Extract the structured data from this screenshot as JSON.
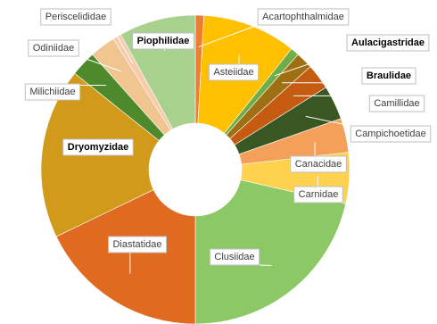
{
  "chart_data": {
    "type": "pie",
    "style": "doughnut",
    "title": "",
    "labels_bold": [
      "Piophilidae",
      "Aulacigastridae",
      "Braulidae",
      "Dryomyzidae"
    ],
    "series": [
      {
        "categories": [
          "Acartophthalmidae",
          "Asteiidae",
          "Aulacigastridae",
          "Braulidae",
          "Camillidae",
          "Campichoetidae",
          "Canacidae",
          "Carnidae",
          "Clusiidae",
          "Diastatidae",
          "Dryomyzidae",
          "Milichiidae",
          "Odiniidae",
          "Periscelididae",
          "Piophilidae"
        ],
        "values": [
          1,
          11,
          1,
          2,
          3,
          4,
          4,
          6,
          24,
          20,
          20,
          3,
          3,
          1,
          9
        ],
        "colors": [
          "#ed7d31",
          "#ffc000",
          "#70ad47",
          "#9e6f13",
          "#c55a11",
          "#385723",
          "#f4a05a",
          "#ffd24d",
          "#8cc966",
          "#e06a1f",
          "#d19a1a",
          "#4e8a2c",
          "#f1c58f",
          "#f8cbad",
          "#a9d18e"
        ]
      }
    ]
  },
  "labels": [
    {
      "text": "Acartophthalmidae"
    },
    {
      "text": "Asteiidae"
    },
    {
      "text": "Aulacigastridae"
    },
    {
      "text": "Braulidae"
    },
    {
      "text": "Camillidae"
    },
    {
      "text": "Campichoetidae"
    },
    {
      "text": "Canacidae"
    },
    {
      "text": "Carnidae"
    },
    {
      "text": "Clusiidae"
    },
    {
      "text": "Diastatidae"
    },
    {
      "text": "Dryomyzidae"
    },
    {
      "text": "Milichiidae"
    },
    {
      "text": "Odiniidae"
    },
    {
      "text": "Periscelididae"
    },
    {
      "text": "Piophilidae"
    }
  ]
}
